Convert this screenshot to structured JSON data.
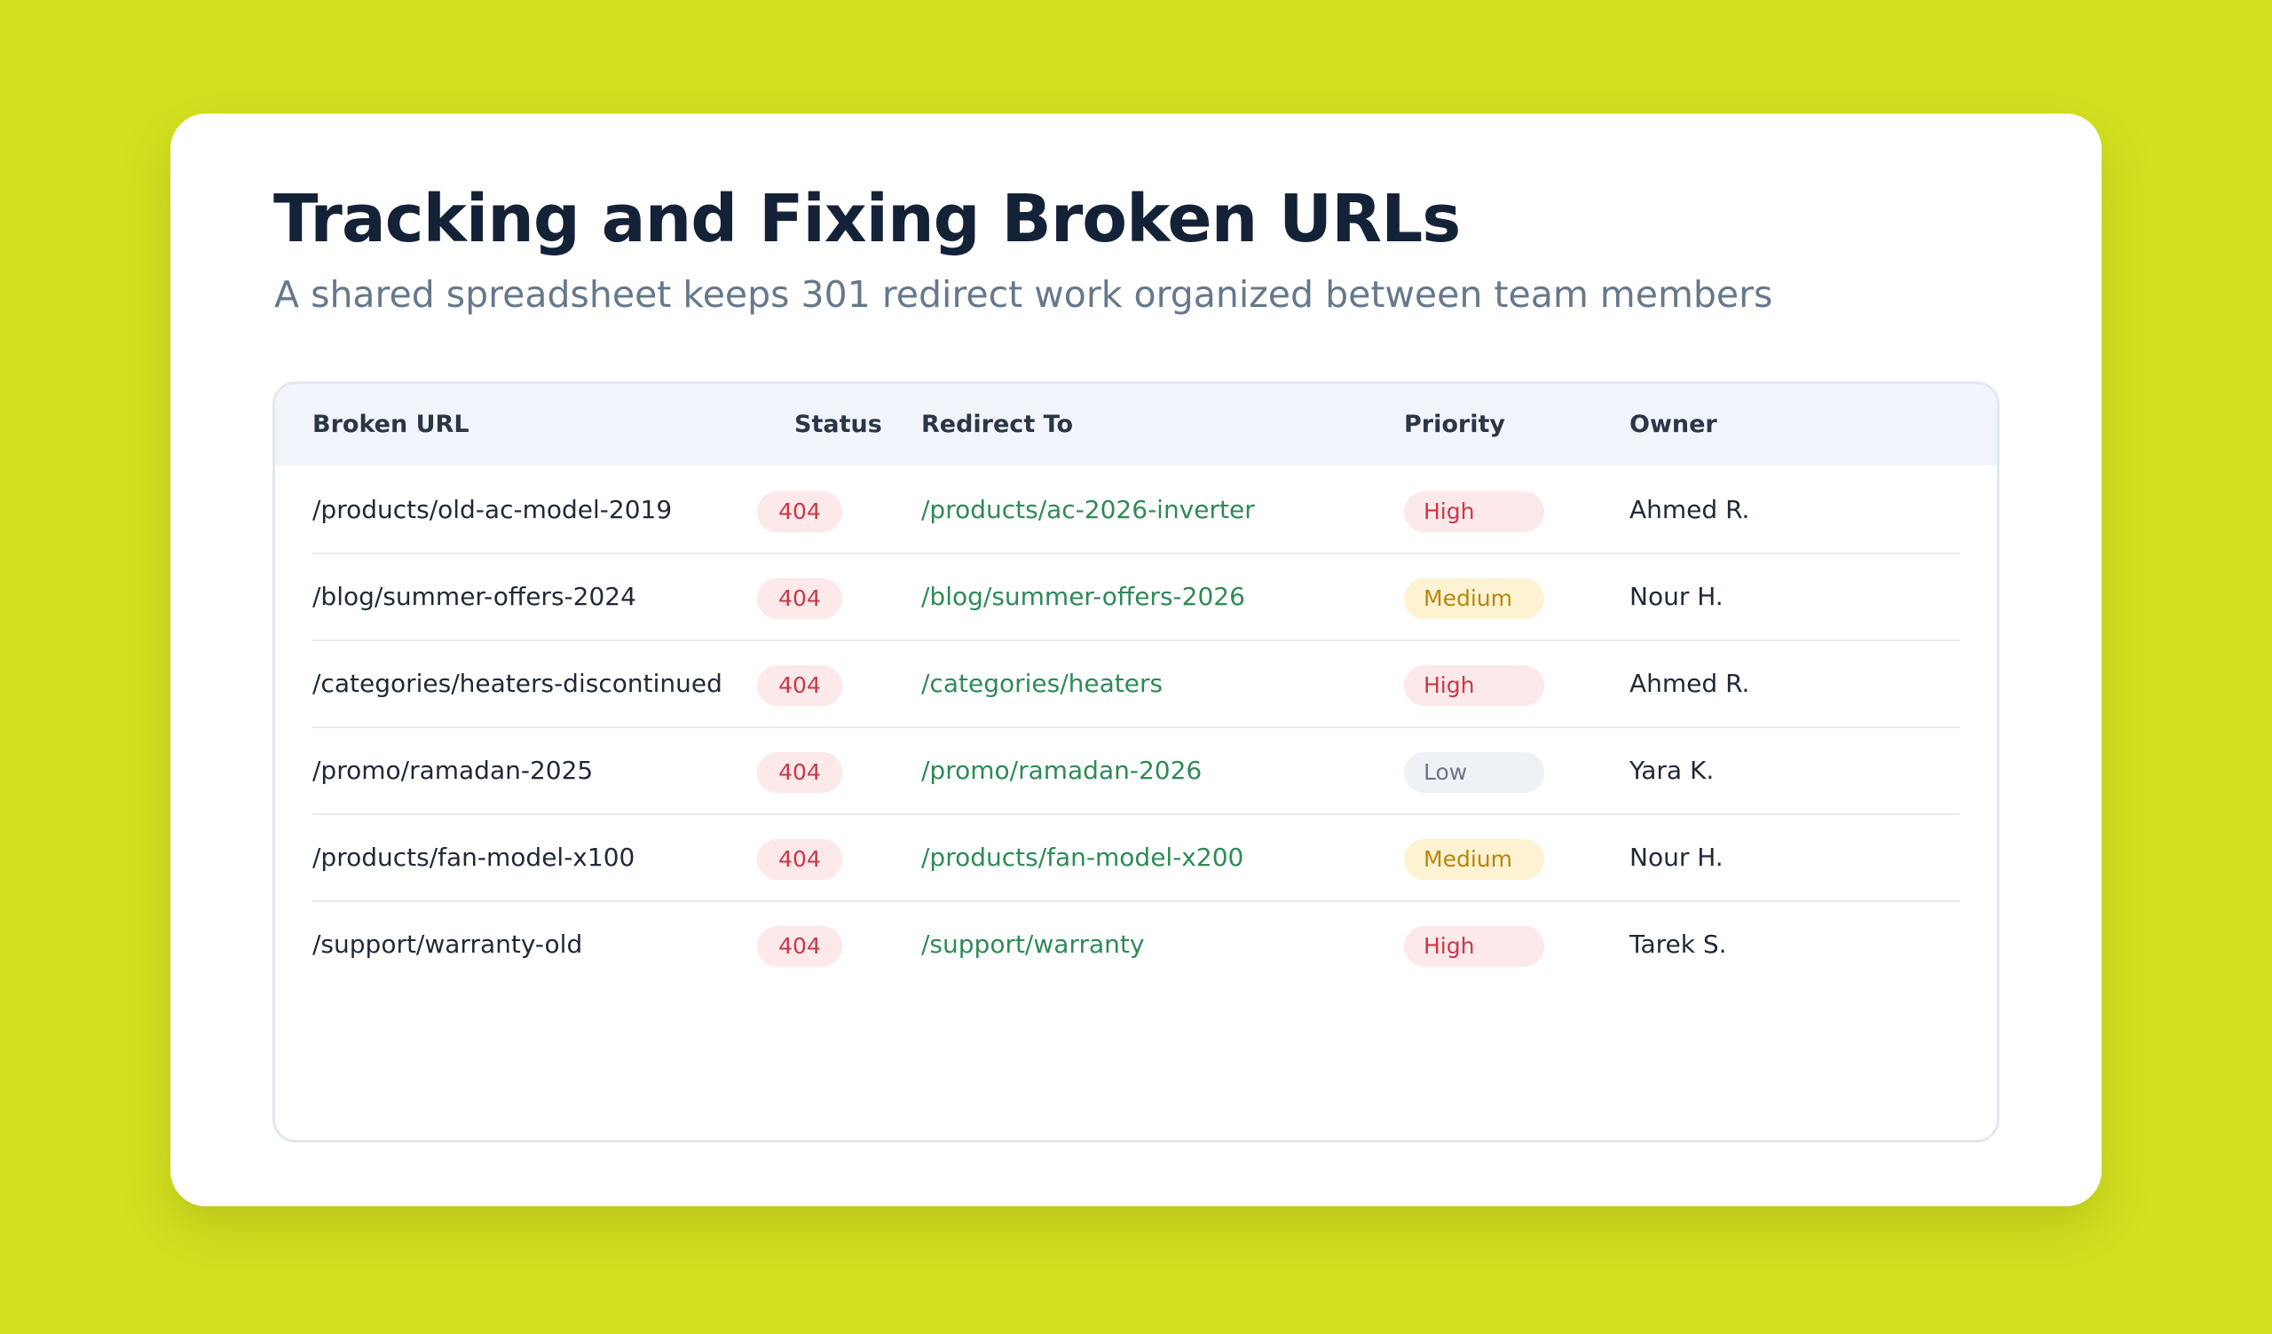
{
  "header": {
    "title": "Tracking and Fixing Broken URLs",
    "subtitle": "A shared spreadsheet keeps 301 redirect work organized between team members"
  },
  "table": {
    "columns": [
      "Broken URL",
      "Status",
      "Redirect To",
      "Priority",
      "Owner"
    ],
    "rows": [
      {
        "url": "/products/old-ac-model-2019",
        "status": "404",
        "redirect": "/products/ac-2026-inverter",
        "priority": "High",
        "owner": "Ahmed R."
      },
      {
        "url": "/blog/summer-offers-2024",
        "status": "404",
        "redirect": "/blog/summer-offers-2026",
        "priority": "Medium",
        "owner": "Nour H."
      },
      {
        "url": "/categories/heaters-discontinued",
        "status": "404",
        "redirect": "/categories/heaters",
        "priority": "High",
        "owner": "Ahmed R."
      },
      {
        "url": "/promo/ramadan-2025",
        "status": "404",
        "redirect": "/promo/ramadan-2026",
        "priority": "Low",
        "owner": "Yara K."
      },
      {
        "url": "/products/fan-model-x100",
        "status": "404",
        "redirect": "/products/fan-model-x200",
        "priority": "Medium",
        "owner": "Nour H."
      },
      {
        "url": "/support/warranty-old",
        "status": "404",
        "redirect": "/support/warranty",
        "priority": "High",
        "owner": "Tarek S."
      }
    ]
  },
  "colors": {
    "background": "#d4e11f",
    "card": "#ffffff",
    "title": "#142238",
    "subtitle": "#66788a",
    "header_row": "#f1f5fb",
    "redirect_link": "#2e8a57",
    "status_404_bg": "#fde8ea",
    "status_404_text": "#c53a48",
    "priority_high_bg": "#fde8ea",
    "priority_high_text": "#c53a48",
    "priority_medium_bg": "#fdf3d3",
    "priority_medium_text": "#b8860b",
    "priority_low_bg": "#eef2f7",
    "priority_low_text": "#6b7686"
  }
}
